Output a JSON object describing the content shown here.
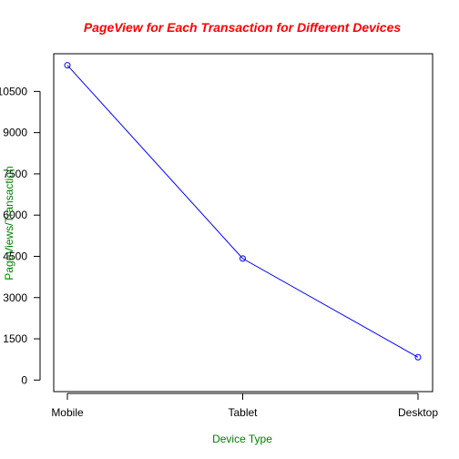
{
  "colors": {
    "title": "#ff0000",
    "axis_label": "#008000",
    "series": "#0000ff",
    "axis": "#000000",
    "background": "#ffffff"
  },
  "chart_data": {
    "type": "line",
    "title": "PageView for Each Transaction for Different Devices",
    "xlabel": "Device Type",
    "ylabel": "PageViews/Transaction",
    "categories": [
      "Mobile",
      "Tablet",
      "Desktop"
    ],
    "series": [
      {
        "values": [
          11450,
          4420,
          830
        ]
      }
    ],
    "marker": "open-circle",
    "ylim": [
      -420,
      11870
    ],
    "yticks": [
      0,
      1500,
      3000,
      4500,
      6000,
      7500,
      9000,
      10500
    ],
    "grid": false,
    "legend": "none"
  }
}
